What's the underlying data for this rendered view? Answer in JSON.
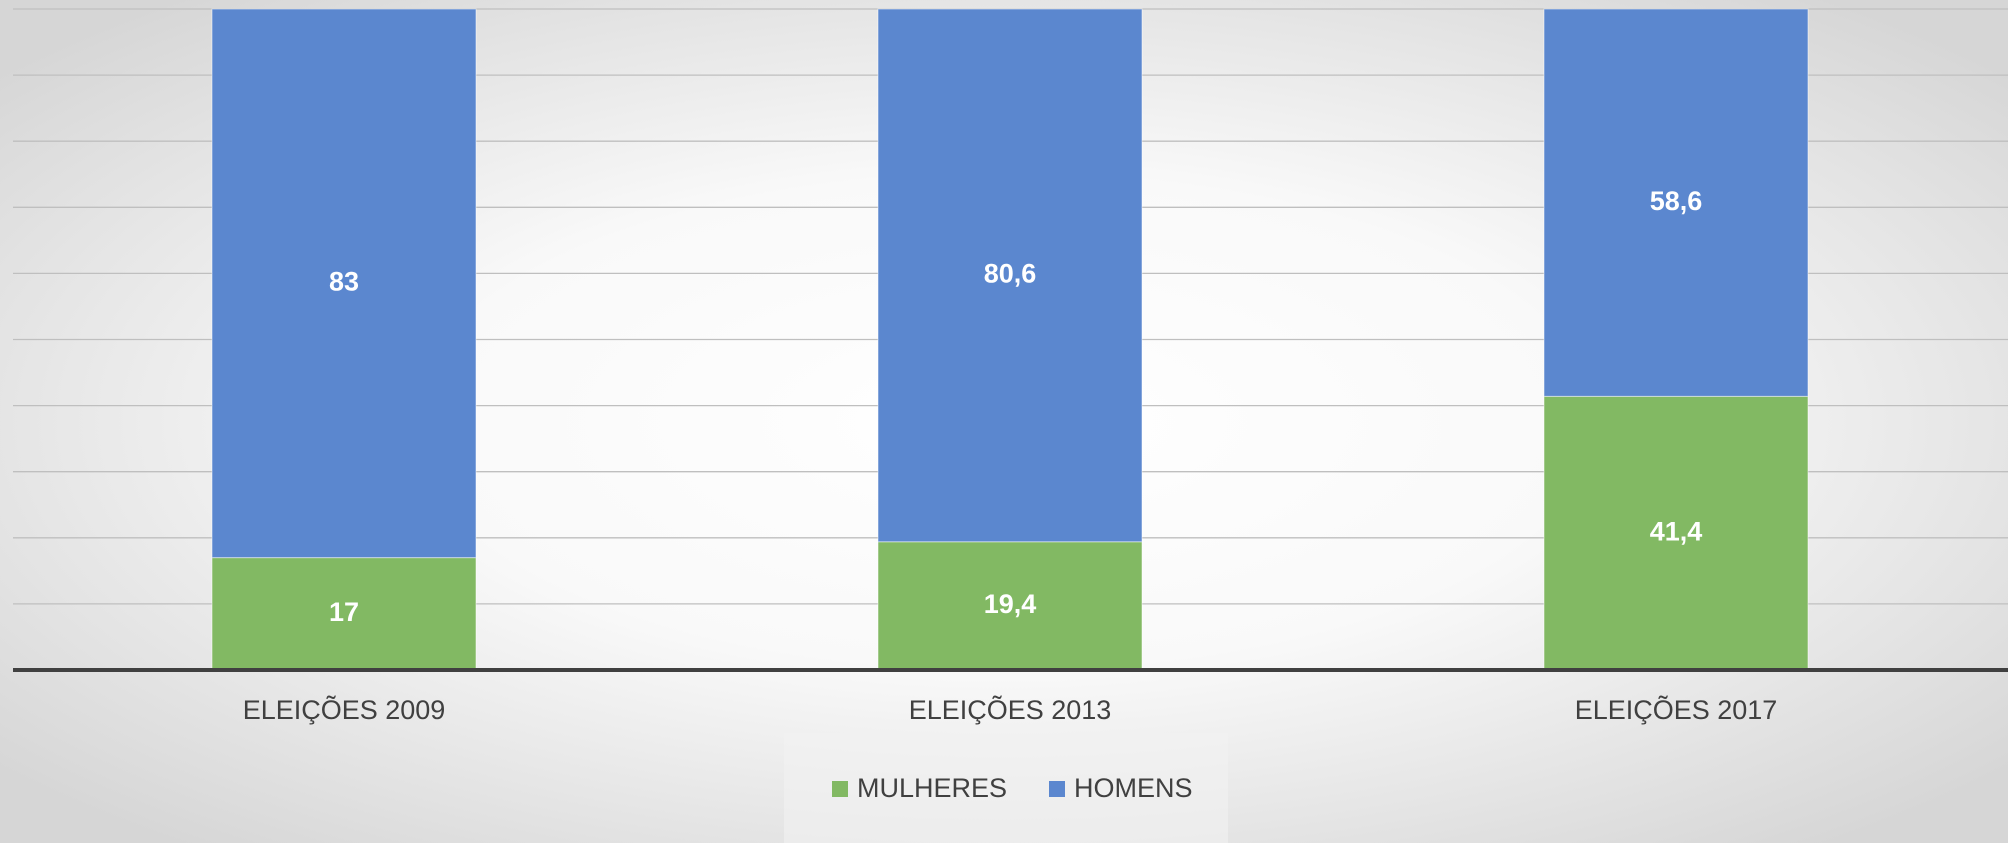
{
  "chart_data": {
    "type": "stacked_bar",
    "categories": [
      "ELEIÇÕES 2009",
      "ELEIÇÕES 2013",
      "ELEIÇÕES 2017"
    ],
    "series": [
      {
        "name": "MULHERES",
        "color": "#82b963",
        "values": [
          17,
          19.4,
          41.4
        ],
        "value_labels": [
          "17",
          "19,4",
          "41,4"
        ]
      },
      {
        "name": "HOMENS",
        "color": "#5b87cf",
        "values": [
          83,
          80.6,
          58.6
        ],
        "value_labels": [
          "83",
          "80,6",
          "58,6"
        ]
      }
    ],
    "ylim": [
      0,
      100
    ],
    "yticks": [
      0,
      10,
      20,
      30,
      40,
      50,
      60,
      70,
      80,
      90,
      100
    ],
    "grid": true,
    "legend": "bottom"
  }
}
